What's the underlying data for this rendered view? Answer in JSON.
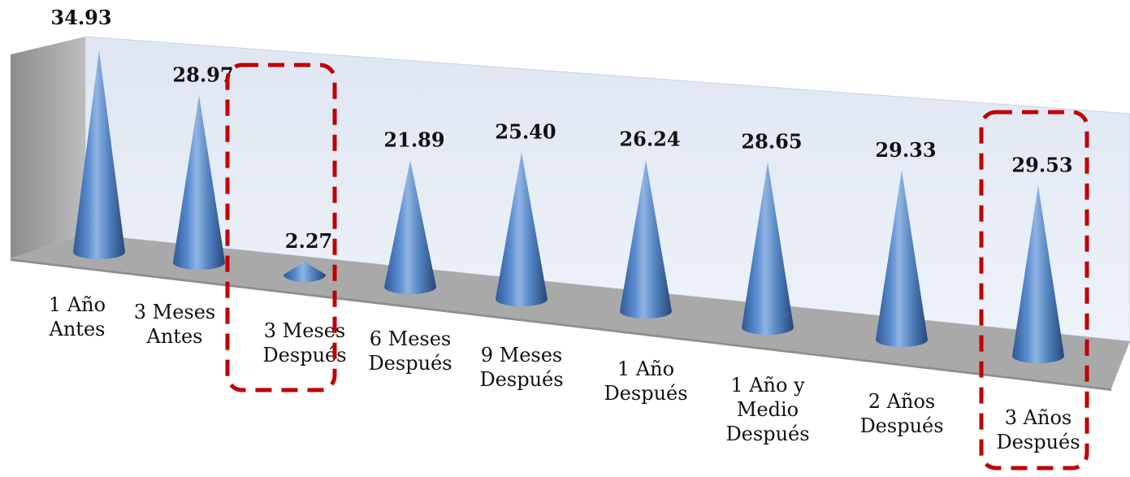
{
  "chart_data": {
    "type": "bar",
    "style": "3d-cone",
    "title": "",
    "xlabel": "",
    "ylabel": "",
    "ylim": [
      0,
      35
    ],
    "grid": false,
    "legend": "none",
    "categories": [
      [
        "1 Año",
        "Antes"
      ],
      [
        "3 Meses",
        "Antes"
      ],
      [
        "3 Meses",
        "Después"
      ],
      [
        "6 Meses",
        "Después"
      ],
      [
        "9 Meses",
        "Después"
      ],
      [
        "1 Año",
        "Después"
      ],
      [
        "1 Año y",
        "Medio",
        "Después"
      ],
      [
        "2 Años",
        "Después"
      ],
      [
        "3 Años",
        "Después"
      ]
    ],
    "values": [
      34.93,
      28.97,
      2.27,
      21.89,
      25.4,
      26.24,
      28.65,
      29.33,
      29.53
    ],
    "value_labels": [
      "34.93",
      "28.97",
      "2.27",
      "21.89",
      "25.40",
      "26.24",
      "28.65",
      "29.33",
      "29.53"
    ],
    "highlighted_categories": [
      2,
      8
    ],
    "colors": {
      "cone_light": "#8fb4e3",
      "cone_mid": "#4f81bd",
      "cone_dark": "#2a4f86",
      "back_wall": "#e6ecf6",
      "side_wall": "#a6a6a6",
      "floor": "#a6a6a6",
      "highlight": "#c00000"
    }
  }
}
